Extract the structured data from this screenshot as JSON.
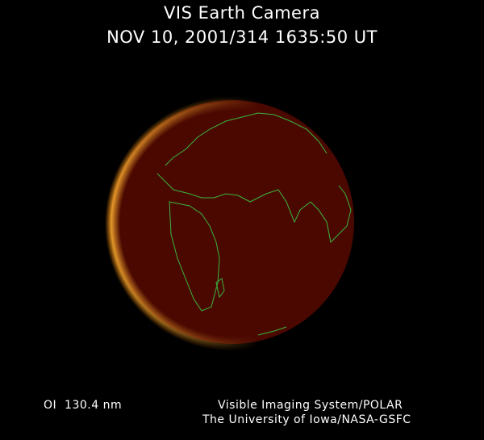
{
  "title": "VIS Earth Camera",
  "timestamp": "NOV 10, 2001/314 1635:50 UT",
  "wavelength": "OI  130.4 nm",
  "credit_line1": "Visible Imaging System/POLAR",
  "credit_line2": "The University of Iowa/NASA-GSFC",
  "colors": {
    "background": "#000000",
    "disc": "#4a0800",
    "aurora": "#ffb030",
    "coastline": "#3cb43c",
    "text": "#ffffff"
  }
}
